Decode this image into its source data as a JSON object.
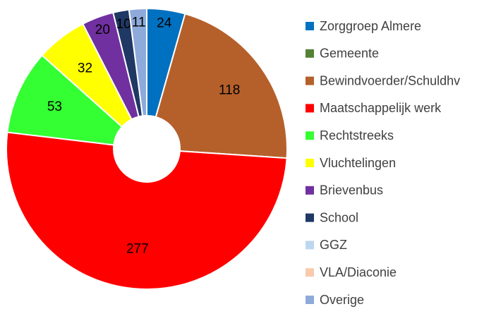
{
  "chart_data": {
    "type": "donut",
    "categories": [
      "Zorggroep Almere",
      "Gemeente",
      "Bewindvoerder/Schuldhv",
      "Maatschappelijk werk",
      "Rechtstreeks",
      "Vluchtelingen",
      "Brievenbus",
      "School",
      "GGZ",
      "VLA/Diaconie",
      "Overige"
    ],
    "values": [
      24,
      0,
      118,
      277,
      53,
      32,
      20,
      10,
      0,
      0,
      11
    ],
    "colors": [
      "#0070c0",
      "#548235",
      "#b5602a",
      "#ff0000",
      "#33ff33",
      "#ffff00",
      "#7030a0",
      "#1f3864",
      "#bdd7ee",
      "#f8cbad",
      "#8eaadb"
    ],
    "legend": "right"
  }
}
